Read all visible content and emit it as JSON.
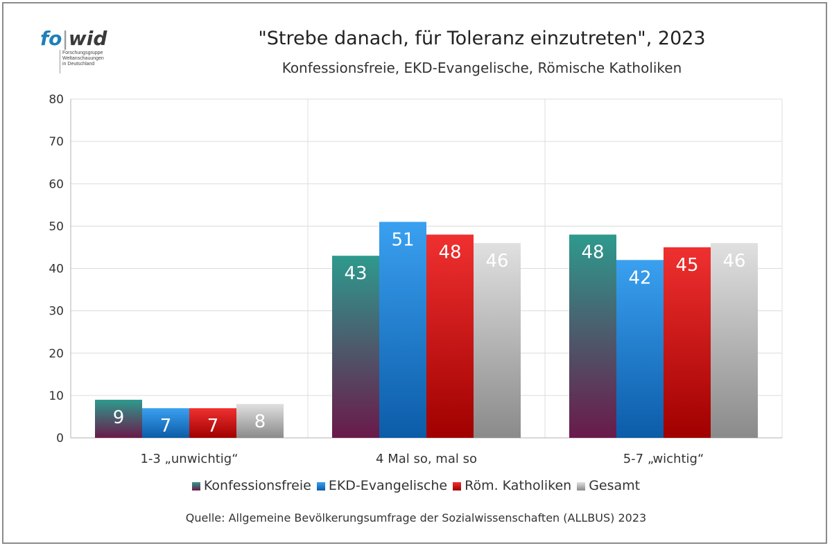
{
  "logo": {
    "word_fo": "fo",
    "word_bar": "|",
    "word_wid": "wid",
    "sub_line1": "Forschungsgruppe",
    "sub_line2": "Weltanschauungen",
    "sub_line3": "in Deutschland"
  },
  "source": "Quelle: Allgemeine Bevölkerungsumfrage der Sozialwissenschaften (ALLBUS) 2023",
  "chart_data": {
    "type": "bar",
    "title": "\"Strebe danach, für Toleranz einzutreten\", 2023",
    "subtitle": "Konfessionsfreie, EKD-Evangelische, Römische Katholiken",
    "categories": [
      "1-3 „unwichtig“",
      "4  Mal so, mal so",
      "5-7 „wichtig“"
    ],
    "series": [
      {
        "name": "Konfessionsfreie",
        "values": [
          9,
          43,
          48
        ],
        "color_top": "#2e9a8e",
        "color_bottom": "#6a1a4a"
      },
      {
        "name": "EKD-Evangelische",
        "values": [
          7,
          51,
          42
        ],
        "color_top": "#3aa0f0",
        "color_bottom": "#0c5ca8"
      },
      {
        "name": "Röm. Katholiken",
        "values": [
          7,
          48,
          45
        ],
        "color_top": "#f03030",
        "color_bottom": "#a00000"
      },
      {
        "name": "Gesamt",
        "values": [
          8,
          46,
          46
        ],
        "color_top": "#e0e0e0",
        "color_bottom": "#8a8a8a"
      }
    ],
    "ylim": [
      0,
      80
    ],
    "yticks": [
      0,
      10,
      20,
      30,
      40,
      50,
      60,
      70,
      80
    ],
    "grid": true,
    "legend_position": "bottom",
    "data_labels": true
  }
}
